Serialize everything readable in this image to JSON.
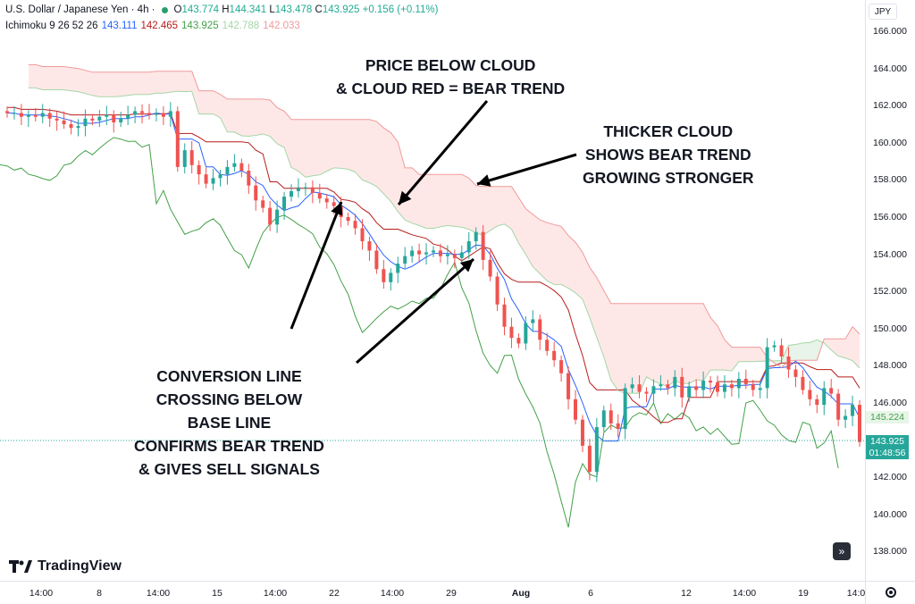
{
  "header": {
    "symbol": "U.S. Dollar / Japanese Yen · 4h ·",
    "ohlc": {
      "o_label": "O",
      "o": "143.774",
      "h_label": "H",
      "h": "144.341",
      "l_label": "L",
      "l": "143.478",
      "c_label": "C",
      "c": "143.925",
      "change": "+0.156 (+0.11%)"
    },
    "indicator": {
      "name": "Ichimoku 9 26 52 26",
      "v1": "143.111",
      "v2": "142.465",
      "v3": "143.925",
      "v4": "142.788",
      "v5": "142.033"
    },
    "colors": {
      "tenkan": "#2962ff",
      "kijun": "#b71c1c",
      "chikou": "#43a047",
      "span_a": "#a5d6a7",
      "span_b": "#ef9a9a"
    }
  },
  "price_axis": {
    "currency": "JPY",
    "ticks": [
      "166.000",
      "164.000",
      "162.000",
      "160.000",
      "158.000",
      "156.000",
      "154.000",
      "152.000",
      "150.000",
      "148.000",
      "146.000",
      "144.000",
      "142.000",
      "140.000",
      "138.000"
    ],
    "tags": [
      {
        "value": "145.224",
        "color": "#e8f5e9",
        "text_color": "#43a047"
      },
      {
        "value": "143.925",
        "color": "#26a69a",
        "text_color": "#ffffff"
      },
      {
        "value": "01:48:56",
        "color": "#26a69a",
        "text_color": "#ffffff"
      }
    ]
  },
  "time_axis": {
    "ticks": [
      {
        "label": "14:00",
        "bold": false
      },
      {
        "label": "8",
        "bold": false
      },
      {
        "label": "14:00",
        "bold": false
      },
      {
        "label": "15",
        "bold": false
      },
      {
        "label": "14:00",
        "bold": false
      },
      {
        "label": "22",
        "bold": false
      },
      {
        "label": "14:00",
        "bold": false
      },
      {
        "label": "29",
        "bold": false
      },
      {
        "label": "Aug",
        "bold": true
      },
      {
        "label": "6",
        "bold": false
      },
      {
        "label": "12",
        "bold": false
      },
      {
        "label": "14:00",
        "bold": false
      },
      {
        "label": "19",
        "bold": false
      },
      {
        "label": "14:0",
        "bold": false
      }
    ]
  },
  "annotations": {
    "price_below": [
      "PRICE BELOW CLOUD",
      "& CLOUD RED = BEAR TREND"
    ],
    "thicker": [
      "THICKER CLOUD",
      "SHOWS BEAR TREND",
      "GROWING STRONGER"
    ],
    "conversion": [
      "CONVERSION LINE",
      "CROSSING BELOW",
      "BASE LINE",
      "CONFIRMS BEAR TREND",
      "& GIVES SELL SIGNALS"
    ]
  },
  "brand": {
    "name": "TradingView"
  },
  "chart_data": {
    "type": "candlestick",
    "title": "U.S. Dollar / Japanese Yen · 4h",
    "ylim": [
      137,
      167
    ],
    "y_unit": "JPY",
    "last_price": 143.925,
    "kijun_last": 145.224,
    "candles": [
      161.6,
      161.6,
      161.4,
      161.5,
      161.4,
      161.6,
      161.3,
      161.2,
      161.0,
      160.8,
      160.9,
      161.3,
      161.2,
      161.4,
      161.5,
      161.1,
      161.3,
      161.5,
      161.7,
      161.6,
      161.5,
      161.6,
      161.4,
      161.7,
      158.7,
      159.6,
      158.8,
      158.3,
      157.8,
      158.1,
      158.3,
      158.7,
      158.9,
      158.5,
      157.7,
      156.9,
      156.5,
      155.6,
      156.4,
      157.1,
      157.4,
      157.6,
      157.6,
      157.3,
      157.0,
      156.8,
      156.6,
      156.0,
      155.8,
      155.4,
      154.7,
      154.2,
      153.2,
      152.5,
      153.0,
      153.5,
      153.9,
      154.2,
      154.0,
      154.1,
      154.2,
      153.9,
      154.0,
      153.8,
      154.1,
      154.7,
      155.2,
      153.7,
      152.8,
      151.3,
      150.1,
      149.5,
      149.2,
      150.3,
      150.5,
      149.4,
      148.8,
      148.3,
      147.6,
      146.2,
      145.1,
      143.7,
      142.3,
      144.7,
      145.6,
      144.9,
      144.6,
      146.8,
      147.0,
      146.6,
      146.5,
      146.9,
      147.0,
      146.8,
      147.4,
      146.3,
      146.9,
      146.7,
      147.2,
      147.1,
      146.6,
      147.0,
      146.8,
      147.3,
      147.0,
      146.7,
      146.8,
      149.0,
      149.1,
      148.5,
      147.8,
      147.4,
      146.7,
      146.2,
      145.9,
      146.8,
      146.5,
      145.1,
      145.3,
      145.9,
      143.9
    ],
    "series": [
      {
        "name": "Ichimoku 9 26 52 26"
      }
    ]
  }
}
